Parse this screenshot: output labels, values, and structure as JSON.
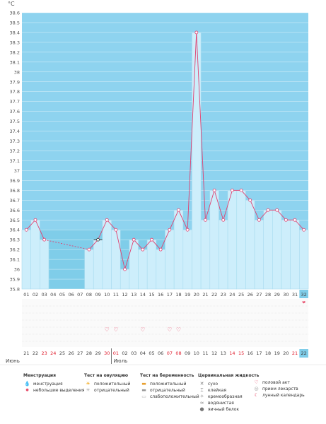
{
  "unit_label": "°C",
  "colors": {
    "background_sky": "#8ed3ef",
    "background_cycle": "#7fcde9",
    "bar_fill": "#cdeefb",
    "bar_stroke": "#a9dcef",
    "line": "#e04070",
    "marker_fill": "#ffffff",
    "grid": "#ffffff",
    "day_highlight": "#7fcde9",
    "red_text": "#e02030",
    "icon_pink": "#e8506e"
  },
  "chart_data": {
    "type": "line",
    "ylim": [
      35.8,
      38.6
    ],
    "yticks": [
      "35.8",
      "35.9",
      "36",
      "36.1",
      "36.2",
      "36.3",
      "36.4",
      "36.5",
      "36.6",
      "36.7",
      "36.8",
      "36.9",
      "37",
      "37.1",
      "37.2",
      "37.3",
      "37.4",
      "37.5",
      "37.6",
      "37.7",
      "37.8",
      "37.9",
      "38",
      "38.1",
      "38.2",
      "38.3",
      "38.4",
      "38.5",
      "38.6"
    ],
    "cycle_days": [
      "01",
      "02",
      "03",
      "04",
      "05",
      "06",
      "07",
      "08",
      "09",
      "10",
      "11",
      "12",
      "13",
      "14",
      "15",
      "16",
      "17",
      "18",
      "19",
      "20",
      "21",
      "22",
      "23",
      "24",
      "25",
      "26",
      "27",
      "28",
      "29",
      "30",
      "31",
      "32"
    ],
    "values": [
      36.4,
      36.5,
      36.3,
      null,
      null,
      null,
      null,
      36.2,
      36.3,
      36.5,
      36.4,
      36.0,
      36.3,
      36.2,
      36.3,
      36.2,
      36.4,
      36.6,
      36.4,
      38.4,
      36.5,
      36.8,
      36.5,
      36.8,
      36.8,
      36.7,
      36.5,
      36.6,
      36.6,
      36.5,
      36.5,
      36.4
    ],
    "dashed_gap": {
      "from_day": "03",
      "to_day": "08"
    },
    "highlight_day": "32",
    "marked_day": "09",
    "calendar_dates": [
      "21",
      "22",
      "23",
      "24",
      "25",
      "26",
      "27",
      "28",
      "29",
      "30",
      "01",
      "02",
      "03",
      "04",
      "05",
      "06",
      "07",
      "08",
      "09",
      "10",
      "11",
      "12",
      "13",
      "14",
      "15",
      "16",
      "17",
      "18",
      "19",
      "20",
      "21",
      "22"
    ],
    "red_dates_index": [
      2,
      3,
      9,
      10,
      16,
      17,
      23,
      24,
      30
    ],
    "month_labels": [
      {
        "label": "Июнь",
        "at_index": 0
      },
      {
        "label": "Июль",
        "at_index": 10
      }
    ],
    "heart_markers_days": [
      "10",
      "11",
      "14",
      "17",
      "18"
    ],
    "menstruation_days": [
      "32"
    ]
  },
  "legend": {
    "menstruation": {
      "title": "Менструация",
      "items": [
        {
          "icon": "drop-icon",
          "label": "менструация"
        },
        {
          "icon": "small-drop-icon",
          "label": "небольшие выделения"
        }
      ]
    },
    "ovulation_test": {
      "title": "Тест на овуляцию",
      "items": [
        {
          "icon": "sun-positive-icon",
          "label": "положительный"
        },
        {
          "icon": "sun-negative-icon",
          "label": "отрицательный"
        }
      ]
    },
    "pregnancy_test": {
      "title": "Тест на беременность",
      "items": [
        {
          "icon": "test-positive-icon",
          "label": "положительный"
        },
        {
          "icon": "test-negative-icon",
          "label": "отрицательный"
        },
        {
          "icon": "test-weak-icon",
          "label": "слабоположительный"
        }
      ]
    },
    "cervical_fluid": {
      "title": "Цервикальная жидкость",
      "items": [
        {
          "icon": "dry-icon",
          "label": "сухо"
        },
        {
          "icon": "sticky-icon",
          "label": "клейкая"
        },
        {
          "icon": "creamy-icon",
          "label": "кремообразная"
        },
        {
          "icon": "watery-icon",
          "label": "водянистая"
        },
        {
          "icon": "eggwhite-icon",
          "label": "яичный белок"
        }
      ]
    },
    "other": {
      "items": [
        {
          "icon": "heart-icon",
          "label": "половой акт"
        },
        {
          "icon": "pill-icon",
          "label": "прием лекарств"
        },
        {
          "icon": "moon-icon",
          "label": "лунный календарь"
        }
      ]
    }
  }
}
